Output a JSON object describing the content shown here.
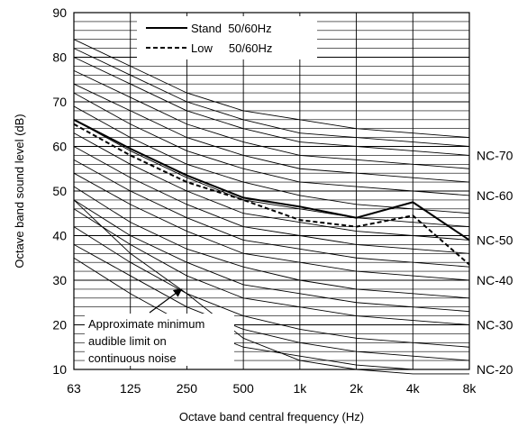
{
  "chart_data": {
    "type": "line",
    "x_categories": [
      "63",
      "125",
      "250",
      "500",
      "1k",
      "2k",
      "4k",
      "8k"
    ],
    "xlabel": "Octave band central frequency (Hz)",
    "ylabel": "Octave band sound level (dB)",
    "ylim": [
      10,
      90
    ],
    "yticks": [
      10,
      20,
      30,
      40,
      50,
      60,
      70,
      80,
      90
    ],
    "grid": "horizontal-2dB",
    "legend_position": "top-center",
    "series": [
      {
        "name": "Stand  50/60Hz",
        "style": "solid",
        "values": [
          66,
          59.5,
          53.5,
          48.5,
          46.5,
          44,
          47.5,
          39
        ]
      },
      {
        "name": "Low     50/60Hz",
        "style": "dashed",
        "values": [
          65,
          58,
          52,
          48,
          43.5,
          42,
          44.5,
          33.5
        ]
      }
    ],
    "nc_curves": [
      {
        "label": "",
        "values": [
          84,
          78,
          72,
          68,
          66,
          64,
          63,
          62
        ]
      },
      {
        "label": "",
        "values": [
          82,
          76,
          70,
          66,
          63,
          62,
          61,
          60
        ]
      },
      {
        "label": "NC-70",
        "values": [
          80,
          74,
          68,
          64,
          61,
          60,
          59,
          58
        ]
      },
      {
        "label": "",
        "values": [
          77,
          71,
          65,
          61,
          58,
          57,
          56,
          55
        ]
      },
      {
        "label": "",
        "values": [
          74,
          68,
          62,
          58,
          55,
          54,
          53,
          52
        ]
      },
      {
        "label": "NC-60",
        "values": [
          72,
          65,
          59,
          55,
          52,
          51,
          50,
          49
        ]
      },
      {
        "label": "",
        "values": [
          69,
          62,
          56,
          52,
          49,
          47,
          46,
          45
        ]
      },
      {
        "label": "",
        "values": [
          66,
          59,
          53,
          48,
          46,
          44,
          43,
          42
        ]
      },
      {
        "label": "NC-50",
        "values": [
          63,
          56,
          50,
          45,
          43,
          41,
          40,
          39
        ]
      },
      {
        "label": "",
        "values": [
          60,
          53,
          47,
          42,
          40,
          38,
          37,
          36
        ]
      },
      {
        "label": "",
        "values": [
          57,
          50,
          44,
          39,
          37,
          35,
          34,
          33
        ]
      },
      {
        "label": "NC-40",
        "values": [
          54,
          47,
          41,
          36,
          34,
          32,
          31,
          30
        ]
      },
      {
        "label": "",
        "values": [
          51,
          43,
          37,
          33,
          30,
          28,
          27,
          26
        ]
      },
      {
        "label": "",
        "values": [
          48,
          40,
          34,
          29,
          27,
          25,
          24,
          23
        ]
      },
      {
        "label": "NC-30",
        "values": [
          46,
          38,
          31,
          26,
          24,
          22,
          21,
          20
        ]
      },
      {
        "label": "",
        "values": [
          42,
          34,
          27,
          22,
          19,
          17,
          16,
          15
        ]
      },
      {
        "label": "",
        "values": [
          38,
          31,
          24,
          19,
          16,
          14,
          13,
          12
        ]
      },
      {
        "label": "NC-20",
        "values": [
          35,
          27,
          20,
          15,
          13,
          11,
          10,
          10
        ]
      }
    ],
    "audible_limit_curve": {
      "values": [
        48,
        36,
        27,
        17,
        12,
        10,
        9,
        9
      ]
    },
    "annotation": {
      "lines": [
        "Approximate minimum",
        "audible limit on",
        "continuous noise"
      ],
      "arrow_points_to": {
        "x": "250",
        "y": 28
      }
    },
    "colors": {
      "line": "#000000",
      "grid": "#000000",
      "background": "#ffffff"
    }
  }
}
